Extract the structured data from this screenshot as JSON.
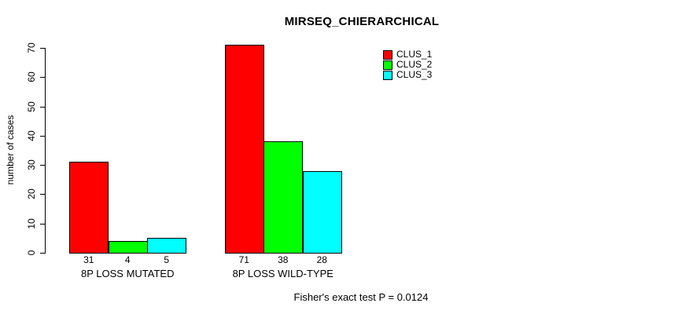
{
  "title": "MIRSEQ_CHIERARCHICAL",
  "footer": "Fisher's exact test P = 0.0124",
  "chart_data": {
    "type": "bar",
    "title": "MIRSEQ_CHIERARCHICAL",
    "xlabel": "",
    "ylabel": "number of cases",
    "ylim": [
      0,
      70
    ],
    "yticks": [
      0,
      10,
      20,
      30,
      40,
      50,
      60,
      70
    ],
    "grid": false,
    "bar_value_labels": true,
    "legend_position": "top-right",
    "categories": [
      "8P LOSS MUTATED",
      "8P LOSS WILD-TYPE"
    ],
    "series": [
      {
        "name": "CLUS_1",
        "color": "#ff0000",
        "values": [
          31,
          71
        ]
      },
      {
        "name": "CLUS_2",
        "color": "#00ff00",
        "values": [
          4,
          38
        ]
      },
      {
        "name": "CLUS_3",
        "color": "#00ffff",
        "values": [
          5,
          28
        ]
      }
    ],
    "bar_border_color": "#000000",
    "annotation": "Fisher's exact test P = 0.0124"
  },
  "legend": {
    "entries": [
      {
        "label": "CLUS_1",
        "color": "#ff0000"
      },
      {
        "label": "CLUS_2",
        "color": "#00ff00"
      },
      {
        "label": "CLUS_3",
        "color": "#00ffff"
      }
    ]
  }
}
